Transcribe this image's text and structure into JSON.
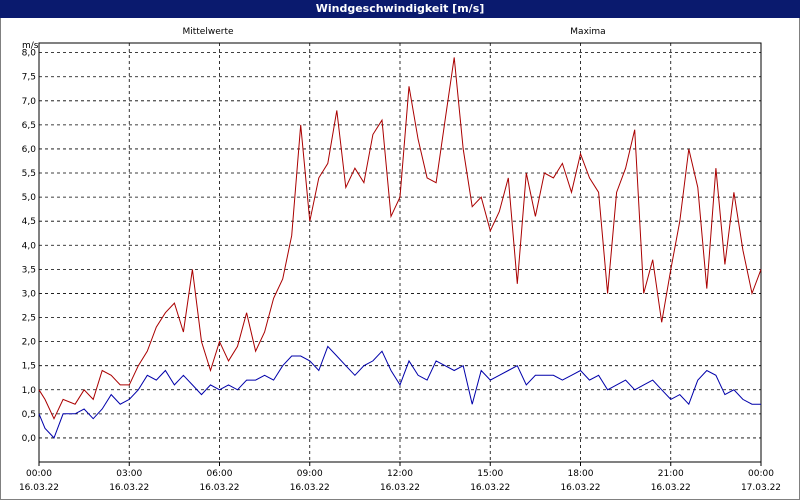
{
  "window": {
    "title": "Windgeschwindigkeit [m/s]"
  },
  "chart_data": {
    "type": "line",
    "title": "Windgeschwindigkeit [m/s]",
    "ylabel": "m/s",
    "ylim": [
      -0.5,
      8.2
    ],
    "yticks": [
      "0,0",
      "0,5",
      "1,0",
      "1,5",
      "2,0",
      "2,5",
      "3,0",
      "3,5",
      "4,0",
      "4,5",
      "5,0",
      "5,5",
      "6,0",
      "6,5",
      "7,0",
      "7,5",
      "8,0"
    ],
    "xlim": [
      0,
      24
    ],
    "xticks": [
      {
        "time": "00:00",
        "date": "16.03.22"
      },
      {
        "time": "03:00",
        "date": "16.03.22"
      },
      {
        "time": "06:00",
        "date": "16.03.22"
      },
      {
        "time": "09:00",
        "date": "16.03.22"
      },
      {
        "time": "12:00",
        "date": "16.03.22"
      },
      {
        "time": "15:00",
        "date": "16.03.22"
      },
      {
        "time": "18:00",
        "date": "16.03.22"
      },
      {
        "time": "21:00",
        "date": "16.03.22"
      },
      {
        "time": "00:00",
        "date": "17.03.22"
      }
    ],
    "grid": true,
    "series": [
      {
        "name": "Mittelwerte",
        "color": "#0000aa",
        "x": [
          0,
          0.2,
          0.5,
          0.8,
          1.2,
          1.5,
          1.8,
          2.1,
          2.4,
          2.7,
          3.0,
          3.3,
          3.6,
          3.9,
          4.2,
          4.5,
          4.8,
          5.1,
          5.4,
          5.7,
          6.0,
          6.3,
          6.6,
          6.9,
          7.2,
          7.5,
          7.8,
          8.1,
          8.4,
          8.7,
          9.0,
          9.3,
          9.6,
          9.9,
          10.2,
          10.5,
          10.8,
          11.1,
          11.4,
          11.7,
          12.0,
          12.3,
          12.6,
          12.9,
          13.2,
          13.5,
          13.8,
          14.1,
          14.4,
          14.7,
          15.0,
          15.3,
          15.6,
          15.9,
          16.2,
          16.5,
          16.8,
          17.1,
          17.4,
          17.7,
          18.0,
          18.3,
          18.6,
          18.9,
          19.2,
          19.5,
          19.8,
          20.1,
          20.4,
          20.7,
          21.0,
          21.3,
          21.6,
          21.9,
          22.2,
          22.5,
          22.8,
          23.1,
          23.4,
          23.7,
          24.0
        ],
        "y": [
          0.5,
          0.2,
          0.0,
          0.5,
          0.5,
          0.6,
          0.4,
          0.6,
          0.9,
          0.7,
          0.8,
          1.0,
          1.3,
          1.2,
          1.4,
          1.1,
          1.3,
          1.1,
          0.9,
          1.1,
          1.0,
          1.1,
          1.0,
          1.2,
          1.2,
          1.3,
          1.2,
          1.5,
          1.7,
          1.7,
          1.6,
          1.4,
          1.9,
          1.7,
          1.5,
          1.3,
          1.5,
          1.6,
          1.8,
          1.4,
          1.1,
          1.6,
          1.3,
          1.2,
          1.6,
          1.5,
          1.4,
          1.5,
          0.7,
          1.4,
          1.2,
          1.3,
          1.4,
          1.5,
          1.1,
          1.3,
          1.3,
          1.3,
          1.2,
          1.3,
          1.4,
          1.2,
          1.3,
          1.0,
          1.1,
          1.2,
          1.0,
          1.1,
          1.2,
          1.0,
          0.8,
          0.9,
          0.7,
          1.2,
          1.4,
          1.3,
          0.9,
          1.0,
          0.8,
          0.7,
          0.7
        ]
      },
      {
        "name": "Maxima",
        "color": "#aa0000",
        "x": [
          0,
          0.2,
          0.5,
          0.8,
          1.2,
          1.5,
          1.8,
          2.1,
          2.4,
          2.7,
          3.0,
          3.3,
          3.6,
          3.9,
          4.2,
          4.5,
          4.8,
          5.1,
          5.4,
          5.7,
          6.0,
          6.3,
          6.6,
          6.9,
          7.2,
          7.5,
          7.8,
          8.1,
          8.4,
          8.7,
          9.0,
          9.3,
          9.6,
          9.9,
          10.2,
          10.5,
          10.8,
          11.1,
          11.4,
          11.7,
          12.0,
          12.3,
          12.6,
          12.9,
          13.2,
          13.5,
          13.8,
          14.1,
          14.4,
          14.7,
          15.0,
          15.3,
          15.6,
          15.9,
          16.2,
          16.5,
          16.8,
          17.1,
          17.4,
          17.7,
          18.0,
          18.3,
          18.6,
          18.9,
          19.2,
          19.5,
          19.8,
          20.1,
          20.4,
          20.7,
          21.0,
          21.3,
          21.6,
          21.9,
          22.2,
          22.5,
          22.8,
          23.1,
          23.4,
          23.7,
          24.0
        ],
        "y": [
          1.0,
          0.8,
          0.4,
          0.8,
          0.7,
          1.0,
          0.8,
          1.4,
          1.3,
          1.1,
          1.1,
          1.5,
          1.8,
          2.3,
          2.6,
          2.8,
          2.2,
          3.5,
          2.0,
          1.4,
          2.0,
          1.6,
          1.9,
          2.6,
          1.8,
          2.2,
          2.9,
          3.3,
          4.2,
          6.5,
          4.5,
          5.4,
          5.7,
          6.8,
          5.2,
          5.6,
          5.3,
          6.3,
          6.6,
          4.6,
          5.0,
          7.3,
          6.2,
          5.4,
          5.3,
          6.6,
          7.9,
          6.0,
          4.8,
          5.0,
          4.3,
          4.7,
          5.4,
          3.2,
          5.5,
          4.6,
          5.5,
          5.4,
          5.7,
          5.1,
          5.9,
          5.4,
          5.1,
          3.0,
          5.1,
          5.6,
          6.4,
          3.0,
          3.7,
          2.4,
          3.5,
          4.5,
          6.0,
          5.2,
          3.1,
          5.6,
          3.6,
          5.1,
          3.9,
          3.0,
          3.5
        ]
      }
    ]
  }
}
